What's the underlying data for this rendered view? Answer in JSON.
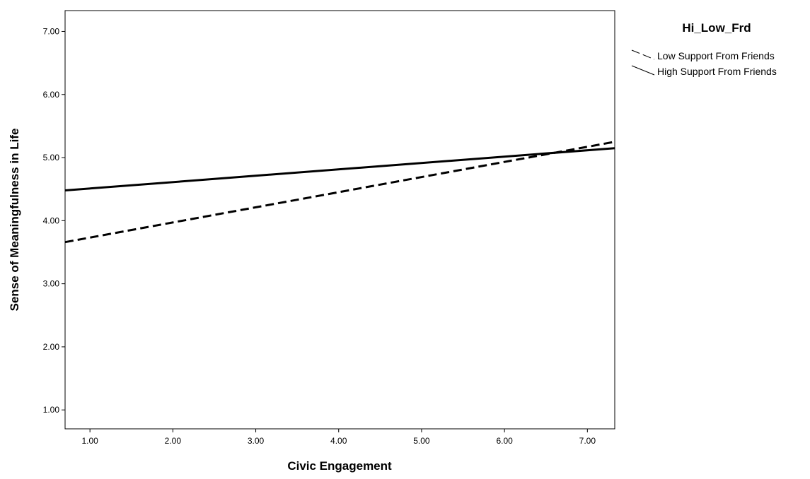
{
  "chart_data": {
    "type": "line",
    "xlabel": "Civic Engagement",
    "ylabel": "Sense of Meaningfulness in Life",
    "xlim": [
      0.7,
      7.33
    ],
    "ylim": [
      0.7,
      7.33
    ],
    "x_ticks": [
      "1.00",
      "2.00",
      "3.00",
      "4.00",
      "5.00",
      "6.00",
      "7.00"
    ],
    "y_ticks": [
      "1.00",
      "2.00",
      "3.00",
      "4.00",
      "5.00",
      "6.00",
      "7.00"
    ],
    "grid": false,
    "legend": {
      "title": "Hi_Low_Frd",
      "placement": "right"
    },
    "series": [
      {
        "name": "Low Support From Friends",
        "style": "dashed",
        "color": "#000000",
        "x": [
          0.7,
          7.33
        ],
        "y": [
          3.66,
          5.25
        ]
      },
      {
        "name": "High Support From Friends",
        "style": "solid",
        "color": "#000000",
        "x": [
          0.7,
          7.33
        ],
        "y": [
          4.48,
          5.15
        ]
      }
    ]
  }
}
